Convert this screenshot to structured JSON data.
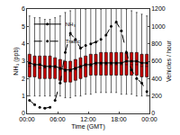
{
  "chart_data": {
    "type": "box",
    "x_label": "Time (GMT)",
    "y_label": "NH₃ (ppb)",
    "y2_label": "Vehicles / hour",
    "x": [
      0.5,
      1.5,
      2.5,
      3.5,
      4.5,
      5.5,
      6.5,
      7.5,
      8.5,
      9.5,
      10.5,
      11.5,
      12.5,
      13.5,
      14.5,
      15.5,
      16.5,
      17.5,
      18.5,
      19.5,
      20.5,
      21.5,
      22.5,
      23.5
    ],
    "xlim": [
      0,
      24
    ],
    "xticks": [
      {
        "value": 0,
        "label": "00:00"
      },
      {
        "value": 6,
        "label": "06:00"
      },
      {
        "value": 12,
        "label": "12:00"
      },
      {
        "value": 18,
        "label": "18:00"
      },
      {
        "value": 24,
        "label": "00:00"
      }
    ],
    "ylim": [
      0,
      6
    ],
    "yticks": [
      0,
      1,
      2,
      3,
      4,
      5,
      6
    ],
    "y2lim": [
      0,
      1200
    ],
    "y2ticks": [
      0,
      200,
      400,
      600,
      800,
      1000,
      1200
    ],
    "legend": "upper left",
    "color": "#cc0000",
    "boxes": {
      "whisker_low": [
        1.0,
        1.0,
        1.0,
        1.0,
        1.0,
        1.0,
        1.0,
        0.9,
        0.9,
        1.0,
        1.0,
        1.1,
        1.1,
        1.2,
        1.2,
        1.2,
        1.2,
        1.2,
        1.1,
        1.1,
        1.1,
        1.0,
        1.0,
        1.0
      ],
      "q1": [
        2.1,
        2.1,
        2.0,
        2.0,
        2.0,
        2.0,
        1.9,
        1.8,
        1.8,
        1.9,
        2.0,
        2.1,
        2.2,
        2.2,
        2.2,
        2.2,
        2.2,
        2.2,
        2.2,
        2.2,
        2.2,
        2.2,
        2.1,
        2.1
      ],
      "median": [
        2.7,
        2.7,
        2.6,
        2.6,
        2.6,
        2.6,
        2.5,
        2.4,
        2.4,
        2.5,
        2.6,
        2.7,
        2.7,
        2.8,
        2.8,
        2.8,
        2.8,
        2.8,
        2.8,
        2.8,
        2.8,
        2.8,
        2.7,
        2.7
      ],
      "q3": [
        3.4,
        3.3,
        3.3,
        3.3,
        3.3,
        3.2,
        3.1,
        3.0,
        3.0,
        3.1,
        3.2,
        3.3,
        3.4,
        3.4,
        3.5,
        3.5,
        3.5,
        3.5,
        3.5,
        3.5,
        3.5,
        3.5,
        3.4,
        3.4
      ],
      "whisker_high": [
        5.6,
        5.5,
        5.5,
        5.4,
        5.4,
        5.5,
        5.6,
        5.8,
        5.9,
        6.2,
        6.3,
        6.0,
        6.1,
        6.1,
        6.0,
        6.2,
        6.3,
        6.3,
        6.1,
        6.0,
        5.9,
        5.8,
        5.7,
        5.6
      ]
    },
    "series": [
      {
        "name": "NH₃",
        "type": "line",
        "color": "#000000",
        "marker": "circle",
        "line_style": "solid",
        "values": [
          2.9,
          2.8,
          2.8,
          2.7,
          2.7,
          2.7,
          2.6,
          2.5,
          2.5,
          2.6,
          2.7,
          2.8,
          2.8,
          2.9,
          2.9,
          2.9,
          2.9,
          2.9,
          2.9,
          3.0,
          3.0,
          3.0,
          2.9,
          2.9
        ]
      },
      {
        "name": "Traffic",
        "type": "line",
        "axis": "y2",
        "color": "#000000",
        "marker": "circle",
        "line_style": "dash",
        "values": [
          150,
          100,
          70,
          60,
          70,
          150,
          350,
          700,
          920,
          850,
          750,
          780,
          800,
          820,
          850,
          900,
          1000,
          1050,
          950,
          700,
          500,
          400,
          350,
          250
        ]
      }
    ]
  }
}
